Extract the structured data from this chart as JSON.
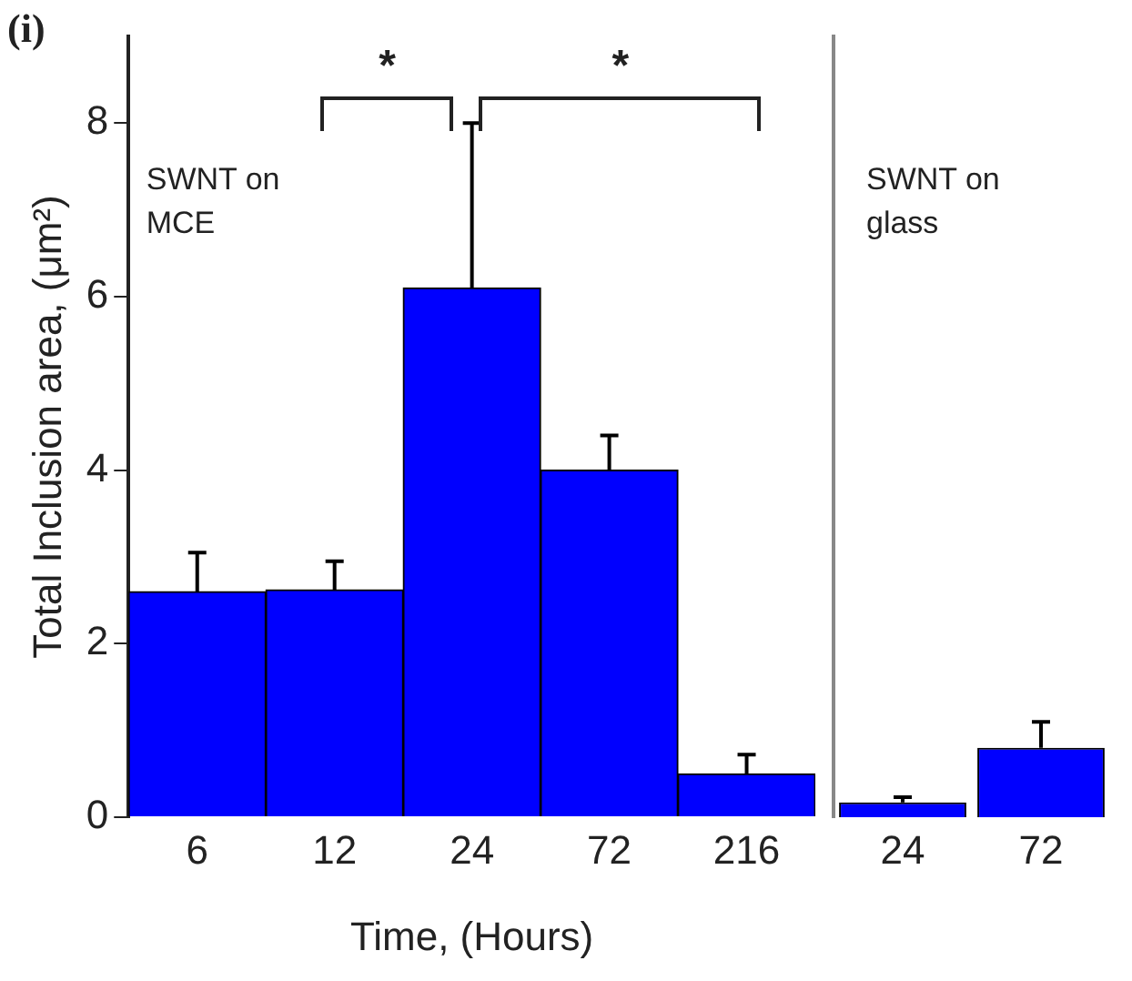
{
  "chart_data": [
    {
      "type": "bar",
      "xlabel": "Time, (Hours)",
      "ylabel": "Total Inclusion area, (μm²)",
      "categories": [
        "6",
        "12",
        "24",
        "72",
        "216"
      ],
      "values": [
        2.6,
        2.62,
        6.1,
        4.0,
        0.5
      ],
      "errors": [
        [
          2.6,
          3.05
        ],
        [
          2.62,
          2.95
        ],
        [
          6.1,
          8.0
        ],
        [
          4.0,
          4.4
        ],
        [
          0.5,
          0.72
        ]
      ],
      "color": "#0000ff",
      "ylim": [
        0,
        9
      ],
      "yticks": [
        0,
        2,
        4,
        6,
        8
      ],
      "grid": false,
      "legend": false,
      "annotations": [
        "(i)",
        "SWNT on MCE",
        "*",
        "*"
      ]
    },
    {
      "type": "bar",
      "categories": [
        "24",
        "72"
      ],
      "values": [
        0.17,
        0.8
      ],
      "errors": [
        [
          0.17,
          0.23
        ],
        [
          0.8,
          1.1
        ]
      ],
      "color": "#0000ff",
      "ylim": [
        0,
        9
      ],
      "yticks": [
        0,
        2,
        4,
        6,
        8
      ],
      "tick_labels": "x",
      "grid": false,
      "legend": false,
      "annotations": [
        "SWNT on glass"
      ]
    }
  ]
}
